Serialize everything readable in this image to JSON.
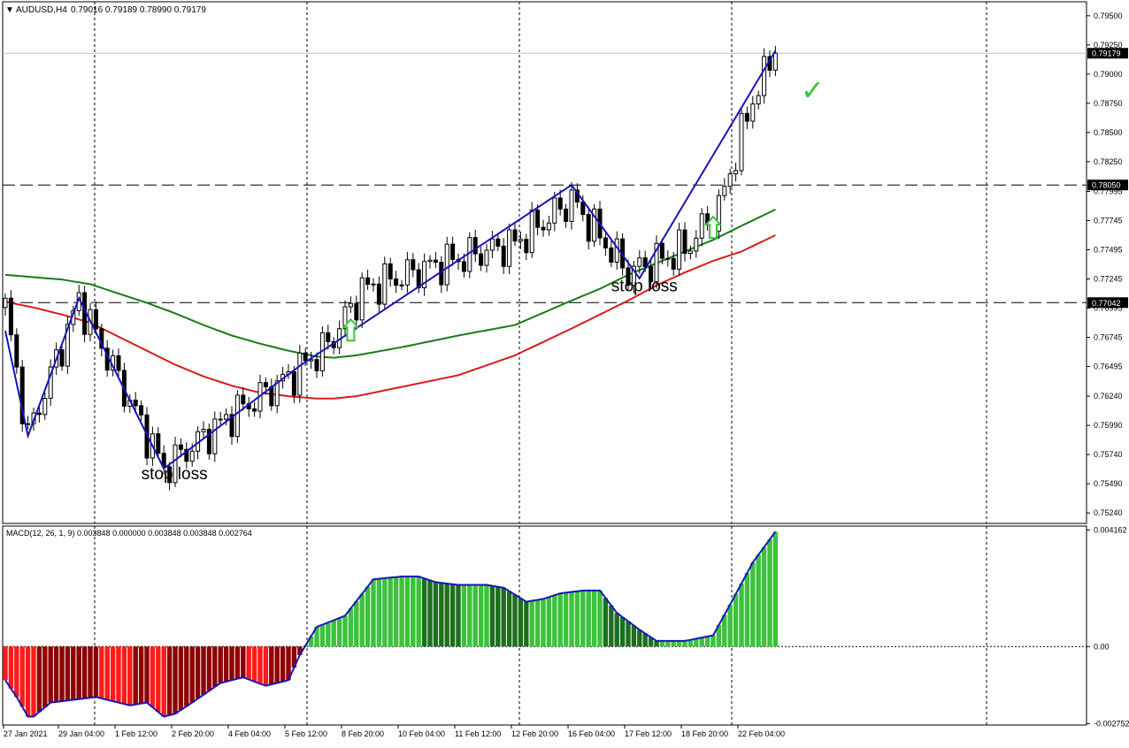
{
  "chart_data": {
    "type": "candlestick",
    "symbol_header": "AUDUSD,H4",
    "ohlc_readout": "0.79016 0.79189 0.78990 0.79179",
    "header_arrow": "▼",
    "price_axis": {
      "ylim": [
        0.7515,
        0.7962
      ],
      "ticks": [
        "0.79500",
        "0.79250",
        "0.79000",
        "0.78750",
        "0.78500",
        "0.78250",
        "0.77995",
        "0.77745",
        "0.77495",
        "0.77245",
        "0.76995",
        "0.76745",
        "0.76495",
        "0.76240",
        "0.75990",
        "0.75740",
        "0.75490",
        "0.75240"
      ]
    },
    "current_price": {
      "value": 0.79179,
      "label": "0.79179"
    },
    "levels": [
      {
        "value": 0.7805,
        "label": "0.78050",
        "style": "dashed"
      },
      {
        "value": 0.77042,
        "label": "0.77042",
        "style": "dashed"
      }
    ],
    "time_axis": {
      "labels": [
        "27 Jan 2021",
        "29 Jan 04:00",
        "1 Feb 12:00",
        "2 Feb 20:00",
        "4 Feb 04:00",
        "5 Feb 12:00",
        "8 Feb 20:00",
        "10 Feb 04:00",
        "11 Feb 12:00",
        "12 Feb 20:00",
        "16 Feb 04:00",
        "17 Feb 12:00",
        "18 Feb 20:00",
        "22 Feb 04:00"
      ]
    },
    "anchor_closes": [
      {
        "bar": 0,
        "close": 0.77
      },
      {
        "bar": 4,
        "close": 0.759
      },
      {
        "bar": 13,
        "close": 0.7706
      },
      {
        "bar": 28,
        "close": 0.7562
      },
      {
        "bar": 40,
        "close": 0.7608
      },
      {
        "bar": 50,
        "close": 0.764
      },
      {
        "bar": 57,
        "close": 0.7668
      },
      {
        "bar": 63,
        "close": 0.7715
      },
      {
        "bar": 75,
        "close": 0.7735
      },
      {
        "bar": 90,
        "close": 0.7755
      },
      {
        "bar": 100,
        "close": 0.7792
      },
      {
        "bar": 110,
        "close": 0.773
      },
      {
        "bar": 120,
        "close": 0.775
      },
      {
        "bar": 126,
        "close": 0.7785
      },
      {
        "bar": 132,
        "close": 0.7879
      },
      {
        "bar": 136,
        "close": 0.7918
      }
    ],
    "moving_averages": [
      {
        "color": "#1a7a1a",
        "points": [
          [
            0,
            0.7728
          ],
          [
            5,
            0.7726
          ],
          [
            10,
            0.7724
          ],
          [
            15,
            0.772
          ],
          [
            20,
            0.7712
          ],
          [
            25,
            0.7704
          ],
          [
            30,
            0.7695
          ],
          [
            35,
            0.7685
          ],
          [
            40,
            0.7676
          ],
          [
            45,
            0.7669
          ],
          [
            50,
            0.7663
          ],
          [
            55,
            0.7658
          ],
          [
            58,
            0.7657
          ],
          [
            62,
            0.7659
          ],
          [
            70,
            0.7666
          ],
          [
            80,
            0.7676
          ],
          [
            90,
            0.7685
          ],
          [
            100,
            0.7706
          ],
          [
            105,
            0.7716
          ],
          [
            110,
            0.7728
          ],
          [
            115,
            0.7738
          ],
          [
            120,
            0.7748
          ],
          [
            125,
            0.7758
          ],
          [
            130,
            0.777
          ],
          [
            136,
            0.7784
          ]
        ]
      },
      {
        "color": "#d81c1c",
        "points": [
          [
            0,
            0.7705
          ],
          [
            5,
            0.77
          ],
          [
            10,
            0.7694
          ],
          [
            15,
            0.7687
          ],
          [
            20,
            0.7675
          ],
          [
            25,
            0.7663
          ],
          [
            30,
            0.7651
          ],
          [
            35,
            0.7641
          ],
          [
            40,
            0.7633
          ],
          [
            45,
            0.7627
          ],
          [
            50,
            0.7624
          ],
          [
            55,
            0.7622
          ],
          [
            58,
            0.7622
          ],
          [
            62,
            0.7624
          ],
          [
            70,
            0.7632
          ],
          [
            80,
            0.7642
          ],
          [
            90,
            0.7659
          ],
          [
            100,
            0.7682
          ],
          [
            105,
            0.7694
          ],
          [
            110,
            0.7706
          ],
          [
            115,
            0.7719
          ],
          [
            120,
            0.773
          ],
          [
            125,
            0.774
          ],
          [
            130,
            0.7748
          ],
          [
            136,
            0.7762
          ]
        ]
      }
    ],
    "zigzag": {
      "color": "#1515b8",
      "points": [
        [
          0,
          0.768
        ],
        [
          4,
          0.759
        ],
        [
          13,
          0.7708
        ],
        [
          28,
          0.7562
        ],
        [
          52,
          0.765
        ],
        [
          100,
          0.7805
        ],
        [
          112,
          0.7725
        ],
        [
          136,
          0.792
        ]
      ]
    },
    "annotations": [
      {
        "text": "stop loss",
        "bar": 29,
        "price": 0.7553
      },
      {
        "text": "stop loss",
        "bar": 112,
        "price": 0.7714
      }
    ],
    "arrows": [
      {
        "bar": 61,
        "price": 0.768,
        "color": "#3bc43b"
      },
      {
        "bar": 125,
        "price": 0.7768,
        "color": "#3bc43b"
      }
    ],
    "checkmark": {
      "symbol": "✓",
      "color": "#3bc43b"
    },
    "macd": {
      "header": "MACD(12, 26, 1, 9) 0.003848 0.000000 0.003848 0.003848 0.002764",
      "ylim": [
        -0.0028,
        0.0043
      ],
      "ticks": [
        {
          "value": 0.004162,
          "label": "0.004162"
        },
        {
          "value": 0.0,
          "label": "0.00"
        },
        {
          "value": -0.002752,
          "label": "-0.002752"
        }
      ],
      "anchors": [
        [
          0,
          -0.0012
        ],
        [
          2,
          -0.0018
        ],
        [
          4,
          -0.0025
        ],
        [
          5,
          -0.0025
        ],
        [
          8,
          -0.002
        ],
        [
          12,
          -0.0019
        ],
        [
          16,
          -0.0018
        ],
        [
          22,
          -0.0021
        ],
        [
          25,
          -0.002
        ],
        [
          28,
          -0.0025
        ],
        [
          30,
          -0.0024
        ],
        [
          33,
          -0.002
        ],
        [
          38,
          -0.0013
        ],
        [
          42,
          -0.0011
        ],
        [
          46,
          -0.0014
        ],
        [
          50,
          -0.0012
        ],
        [
          52,
          -0.0003
        ],
        [
          55,
          0.0007
        ],
        [
          60,
          0.0011
        ],
        [
          65,
          0.0024
        ],
        [
          70,
          0.0025
        ],
        [
          73,
          0.0025
        ],
        [
          76,
          0.0023
        ],
        [
          80,
          0.0022
        ],
        [
          85,
          0.0022
        ],
        [
          88,
          0.0021
        ],
        [
          92,
          0.0016
        ],
        [
          95,
          0.0017
        ],
        [
          98,
          0.0019
        ],
        [
          102,
          0.002
        ],
        [
          105,
          0.002
        ],
        [
          108,
          0.0012
        ],
        [
          112,
          0.0006
        ],
        [
          115,
          0.0002
        ],
        [
          120,
          0.0002
        ],
        [
          125,
          0.0004
        ],
        [
          128,
          0.0015
        ],
        [
          132,
          0.003
        ],
        [
          136,
          0.0041
        ]
      ]
    }
  }
}
